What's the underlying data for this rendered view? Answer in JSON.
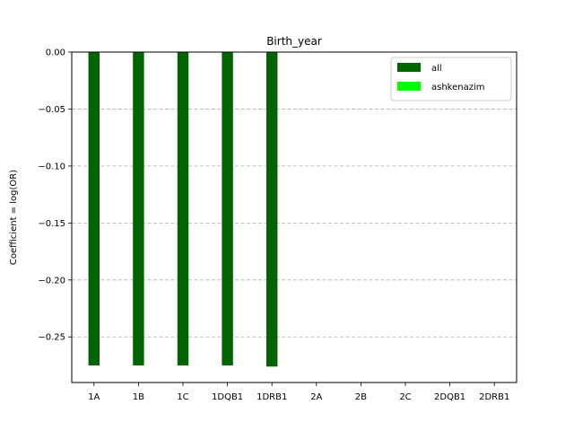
{
  "chart_data": {
    "type": "bar",
    "title": "Birth_year",
    "xlabel": "",
    "ylabel": "Coefficient = log(OR)",
    "categories": [
      "1A",
      "1B",
      "1C",
      "1DQB1",
      "1DRB1",
      "2A",
      "2B",
      "2C",
      "2DQB1",
      "2DRB1"
    ],
    "series": [
      {
        "name": "all",
        "color": "#006400",
        "values": [
          -0.275,
          -0.275,
          -0.275,
          -0.275,
          -0.276,
          null,
          null,
          null,
          null,
          null
        ]
      },
      {
        "name": "ashkenazim",
        "color": "#00ff00",
        "values": [
          null,
          null,
          null,
          null,
          null,
          null,
          null,
          null,
          null,
          null
        ]
      }
    ],
    "ylim": [
      -0.29,
      0.0
    ],
    "yticks": [
      "0.00",
      "−0.05",
      "−0.10",
      "−0.15",
      "−0.20",
      "−0.25"
    ],
    "ytick_values": [
      0.0,
      -0.05,
      -0.1,
      -0.15,
      -0.2,
      -0.25
    ],
    "grid": "y-dashed",
    "legend_position": "upper-right"
  }
}
